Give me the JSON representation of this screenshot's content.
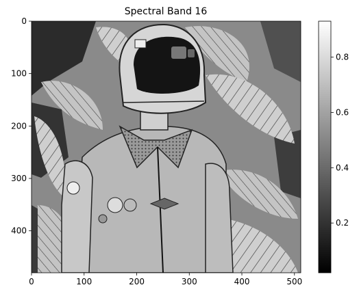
{
  "chart_data": {
    "type": "heatmap",
    "title": "Spectral Band 16",
    "xlabel": "",
    "ylabel": "",
    "image_width": 512,
    "image_height": 480,
    "xlim": [
      0,
      512
    ],
    "ylim": [
      480,
      0
    ],
    "x_ticks": [
      0,
      100,
      200,
      300,
      400,
      500
    ],
    "y_ticks": [
      0,
      100,
      200,
      300,
      400
    ],
    "colormap": "gray",
    "colorbar": {
      "range": [
        0.02,
        0.93
      ],
      "ticks": [
        0.2,
        0.4,
        0.6,
        0.8
      ],
      "tick_labels": [
        "0.2",
        "0.4",
        "0.6",
        "0.8"
      ]
    },
    "grid": false
  }
}
